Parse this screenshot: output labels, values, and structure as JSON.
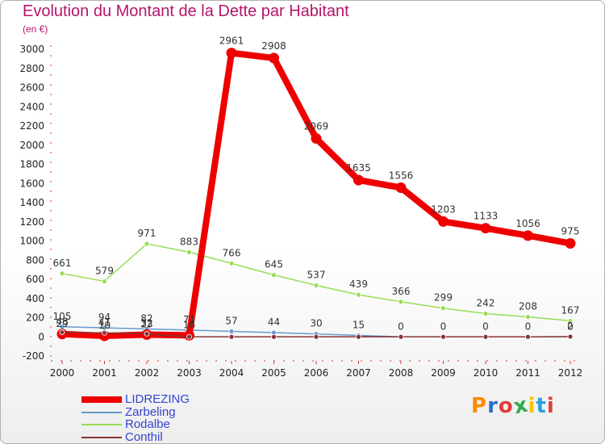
{
  "header": {
    "title": "Evolution du Montant de la Dette par Habitant",
    "unit": "(en €)"
  },
  "logo": {
    "text": "Proxiti",
    "colors": [
      "#ff8a00",
      "#2a6fc9",
      "#e23b3b",
      "#34a853",
      "#f5c300",
      "#2a9fd8",
      "#e23b3b"
    ]
  },
  "chart_data": {
    "type": "line",
    "title": "Evolution du Montant de la Dette par Habitant",
    "ylabel": "(en €)",
    "xlabel": "",
    "ylim": [
      -200,
      3000
    ],
    "yticks": [
      -200,
      0,
      200,
      400,
      600,
      800,
      1000,
      1200,
      1400,
      1600,
      1800,
      2000,
      2200,
      2400,
      2600,
      2800,
      3000
    ],
    "grid": false,
    "legend_position": "bottom-left",
    "categories": [
      "2000",
      "2001",
      "2002",
      "2003",
      "2004",
      "2005",
      "2006",
      "2007",
      "2008",
      "2009",
      "2010",
      "2011",
      "2012"
    ],
    "series": [
      {
        "name": "LIDREZING",
        "color": "#ee0000",
        "weight": "thick",
        "values": [
          29,
          10,
          23,
          16,
          2961,
          2908,
          2069,
          1635,
          1556,
          1203,
          1133,
          1056,
          975
        ],
        "labels": [
          "29",
          "10",
          "23",
          "16",
          "2961",
          "2908",
          "2069",
          "1635",
          "1556",
          "1203",
          "1133",
          "1056",
          "975"
        ]
      },
      {
        "name": "Zarbeling",
        "color": "#6699cc",
        "weight": "thin",
        "values": [
          105,
          94,
          82,
          71,
          57,
          44,
          30,
          15,
          0,
          0,
          0,
          0,
          0
        ],
        "labels": [
          "105",
          "94",
          "82",
          "71",
          "57",
          "44",
          "30",
          "15",
          "0",
          "0",
          "0",
          "0",
          "0"
        ]
      },
      {
        "name": "Rodalbe",
        "color": "#99dd55",
        "weight": "thin",
        "values": [
          661,
          579,
          971,
          883,
          766,
          645,
          537,
          439,
          366,
          299,
          242,
          208,
          167
        ],
        "labels": [
          "661",
          "579",
          "971",
          "883",
          "766",
          "645",
          "537",
          "439",
          "366",
          "299",
          "242",
          "208",
          "167"
        ]
      },
      {
        "name": "Conthil",
        "color": "#883333",
        "weight": "thin",
        "values": [
          48,
          41,
          32,
          0,
          0,
          0,
          0,
          0,
          0,
          0,
          0,
          0,
          2
        ],
        "labels": [
          "48",
          "41",
          "32",
          "",
          "",
          "",
          "",
          "",
          "",
          "",
          "",
          "",
          "2"
        ]
      }
    ]
  }
}
